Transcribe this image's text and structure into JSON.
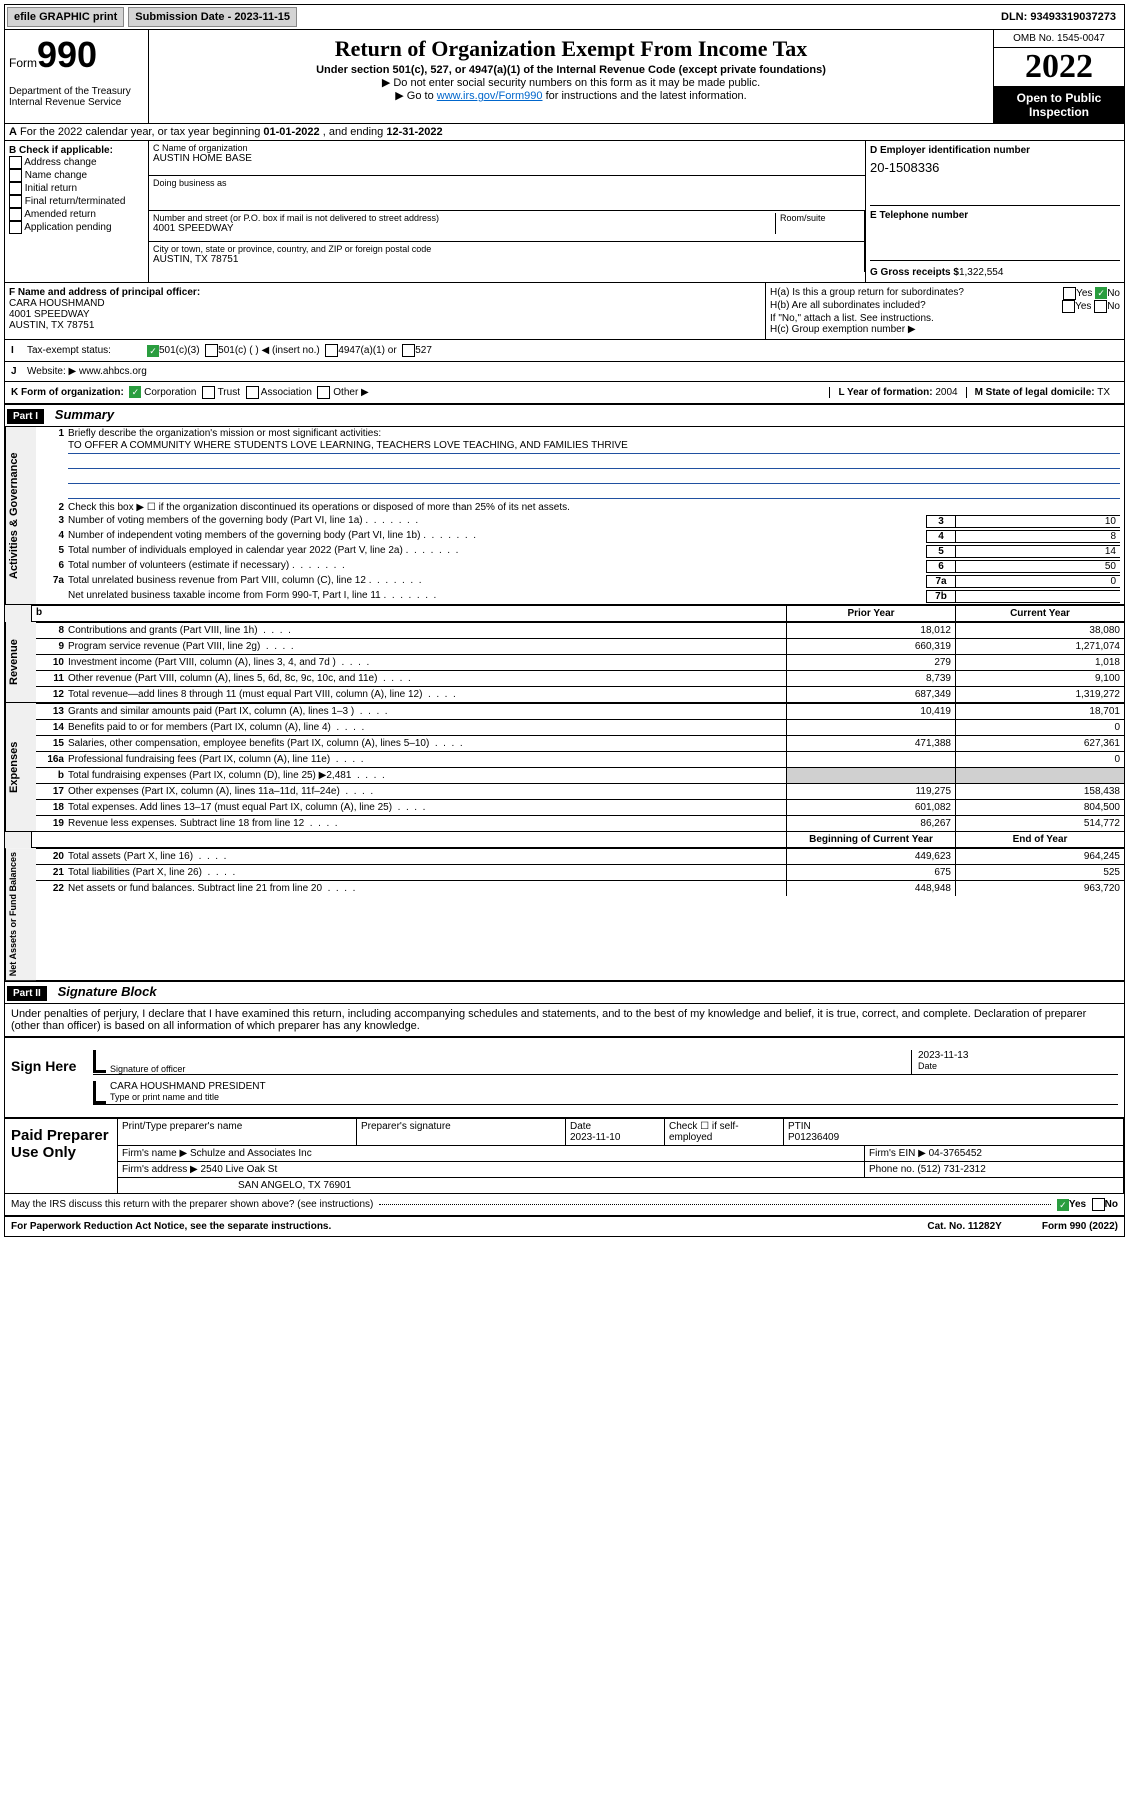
{
  "top": {
    "efile": "efile GRAPHIC print",
    "submission": "Submission Date - 2023-11-15",
    "dln": "DLN: 93493319037273"
  },
  "header": {
    "form_prefix": "Form",
    "form_number": "990",
    "dept": "Department of the Treasury",
    "irs": "Internal Revenue Service",
    "title": "Return of Organization Exempt From Income Tax",
    "subtitle": "Under section 501(c), 527, or 4947(a)(1) of the Internal Revenue Code (except private foundations)",
    "instr1": "▶ Do not enter social security numbers on this form as it may be made public.",
    "instr2_pre": "▶ Go to ",
    "instr2_link": "www.irs.gov/Form990",
    "instr2_post": " for instructions and the latest information.",
    "omb": "OMB No. 1545-0047",
    "year": "2022",
    "open": "Open to Public Inspection"
  },
  "section_a": {
    "text_pre": "For the 2022 calendar year, or tax year beginning ",
    "begin": "01-01-2022",
    "mid": " , and ending ",
    "end": "12-31-2022",
    "label": "A"
  },
  "b": {
    "label": "B Check if applicable:",
    "items": [
      "Address change",
      "Name change",
      "Initial return",
      "Final return/terminated",
      "Amended return",
      "Application pending"
    ]
  },
  "c": {
    "label_name": "C Name of organization",
    "org": "AUSTIN HOME BASE",
    "dba_label": "Doing business as",
    "addr_label": "Number and street (or P.O. box if mail is not delivered to street address)",
    "room_label": "Room/suite",
    "addr": "4001 SPEEDWAY",
    "city_label": "City or town, state or province, country, and ZIP or foreign postal code",
    "city": "AUSTIN, TX  78751"
  },
  "d": {
    "label": "D Employer identification number",
    "ein": "20-1508336"
  },
  "e": {
    "label": "E Telephone number",
    "val": ""
  },
  "g": {
    "label": "G Gross receipts $",
    "val": "1,322,554"
  },
  "f": {
    "label": "F Name and address of principal officer:",
    "name": "CARA HOUSHMAND",
    "addr1": "4001 SPEEDWAY",
    "addr2": "AUSTIN, TX  78751"
  },
  "h": {
    "a_label": "H(a)  Is this a group return for subordinates?",
    "b_label": "H(b)  Are all subordinates included?",
    "b_note": "If \"No,\" attach a list. See instructions.",
    "c_label": "H(c)  Group exemption number ▶",
    "yes": "Yes",
    "no": "No"
  },
  "i": {
    "label": "I",
    "text": "Tax-exempt status:",
    "opt1": "501(c)(3)",
    "opt2": "501(c) (  ) ◀ (insert no.)",
    "opt3": "4947(a)(1) or",
    "opt4": "527"
  },
  "j": {
    "label": "J",
    "text": "Website: ▶",
    "val": "www.ahbcs.org"
  },
  "k": {
    "label": "K Form of organization:",
    "opts": [
      "Corporation",
      "Trust",
      "Association",
      "Other ▶"
    ]
  },
  "l": {
    "label": "L Year of formation:",
    "val": "2004"
  },
  "m": {
    "label": "M State of legal domicile:",
    "val": "TX"
  },
  "part1": {
    "header": "Part I",
    "title": "Summary",
    "l1": "Briefly describe the organization's mission or most significant activities:",
    "mission": "TO OFFER A COMMUNITY WHERE STUDENTS LOVE LEARNING, TEACHERS LOVE TEACHING, AND FAMILIES THRIVE",
    "l2": "Check this box ▶ ☐  if the organization discontinued its operations or disposed of more than 25% of its net assets.",
    "lines": [
      {
        "n": "3",
        "t": "Number of voting members of the governing body (Part VI, line 1a)",
        "box": "3",
        "v": "10"
      },
      {
        "n": "4",
        "t": "Number of independent voting members of the governing body (Part VI, line 1b)",
        "box": "4",
        "v": "8"
      },
      {
        "n": "5",
        "t": "Total number of individuals employed in calendar year 2022 (Part V, line 2a)",
        "box": "5",
        "v": "14"
      },
      {
        "n": "6",
        "t": "Total number of volunteers (estimate if necessary)",
        "box": "6",
        "v": "50"
      },
      {
        "n": "7a",
        "t": "Total unrelated business revenue from Part VIII, column (C), line 12",
        "box": "7a",
        "v": "0"
      },
      {
        "n": "",
        "t": "Net unrelated business taxable income from Form 990-T, Part I, line 11",
        "box": "7b",
        "v": ""
      }
    ],
    "side1": "Activities & Governance",
    "prior_h": "Prior Year",
    "curr_h": "Current Year",
    "side2": "Revenue",
    "revenue": [
      {
        "n": "8",
        "t": "Contributions and grants (Part VIII, line 1h)",
        "p": "18,012",
        "c": "38,080"
      },
      {
        "n": "9",
        "t": "Program service revenue (Part VIII, line 2g)",
        "p": "660,319",
        "c": "1,271,074"
      },
      {
        "n": "10",
        "t": "Investment income (Part VIII, column (A), lines 3, 4, and 7d )",
        "p": "279",
        "c": "1,018"
      },
      {
        "n": "11",
        "t": "Other revenue (Part VIII, column (A), lines 5, 6d, 8c, 9c, 10c, and 11e)",
        "p": "8,739",
        "c": "9,100"
      },
      {
        "n": "12",
        "t": "Total revenue—add lines 8 through 11 (must equal Part VIII, column (A), line 12)",
        "p": "687,349",
        "c": "1,319,272"
      }
    ],
    "side3": "Expenses",
    "expenses": [
      {
        "n": "13",
        "t": "Grants and similar amounts paid (Part IX, column (A), lines 1–3 )",
        "p": "10,419",
        "c": "18,701"
      },
      {
        "n": "14",
        "t": "Benefits paid to or for members (Part IX, column (A), line 4)",
        "p": "",
        "c": "0"
      },
      {
        "n": "15",
        "t": "Salaries, other compensation, employee benefits (Part IX, column (A), lines 5–10)",
        "p": "471,388",
        "c": "627,361"
      },
      {
        "n": "16a",
        "t": "Professional fundraising fees (Part IX, column (A), line 11e)",
        "p": "",
        "c": "0"
      },
      {
        "n": "b",
        "t": "Total fundraising expenses (Part IX, column (D), line 25) ▶2,481",
        "p": "shaded",
        "c": "shaded"
      },
      {
        "n": "17",
        "t": "Other expenses (Part IX, column (A), lines 11a–11d, 11f–24e)",
        "p": "119,275",
        "c": "158,438"
      },
      {
        "n": "18",
        "t": "Total expenses. Add lines 13–17 (must equal Part IX, column (A), line 25)",
        "p": "601,082",
        "c": "804,500"
      },
      {
        "n": "19",
        "t": "Revenue less expenses. Subtract line 18 from line 12",
        "p": "86,267",
        "c": "514,772"
      }
    ],
    "side4": "Net Assets or Fund Balances",
    "beg_h": "Beginning of Current Year",
    "end_h": "End of Year",
    "net": [
      {
        "n": "20",
        "t": "Total assets (Part X, line 16)",
        "p": "449,623",
        "c": "964,245"
      },
      {
        "n": "21",
        "t": "Total liabilities (Part X, line 26)",
        "p": "675",
        "c": "525"
      },
      {
        "n": "22",
        "t": "Net assets or fund balances. Subtract line 21 from line 20",
        "p": "448,948",
        "c": "963,720"
      }
    ]
  },
  "part2": {
    "header": "Part II",
    "title": "Signature Block",
    "pen": "Under penalties of perjury, I declare that I have examined this return, including accompanying schedules and statements, and to the best of my knowledge and belief, it is true, correct, and complete. Declaration of preparer (other than officer) is based on all information of which preparer has any knowledge."
  },
  "sign": {
    "left": "Sign Here",
    "sig_label": "Signature of officer",
    "date_label": "Date",
    "date": "2023-11-13",
    "name": "CARA HOUSHMAND  PRESIDENT",
    "name_label": "Type or print name and title"
  },
  "prep": {
    "left": "Paid Preparer Use Only",
    "h1": "Print/Type preparer's name",
    "h2": "Preparer's signature",
    "h3": "Date",
    "date": "2023-11-10",
    "h4": "Check ☐ if self-employed",
    "h5": "PTIN",
    "ptin": "P01236409",
    "firm_label": "Firm's name    ▶",
    "firm": "Schulze and Associates Inc",
    "ein_label": "Firm's EIN ▶",
    "ein": "04-3765452",
    "addr_label": "Firm's address ▶",
    "addr1": "2540 Live Oak St",
    "addr2": "SAN ANGELO, TX  76901",
    "phone_label": "Phone no.",
    "phone": "(512) 731-2312",
    "discuss": "May the IRS discuss this return with the preparer shown above? (see instructions)",
    "yes": "Yes",
    "no": "No"
  },
  "footer": {
    "left": "For Paperwork Reduction Act Notice, see the separate instructions.",
    "mid": "Cat. No. 11282Y",
    "right": "Form 990 (2022)"
  },
  "colors": {
    "link": "#0645ad",
    "mission_line": "#2050a0",
    "check": "#2a9d3f"
  }
}
